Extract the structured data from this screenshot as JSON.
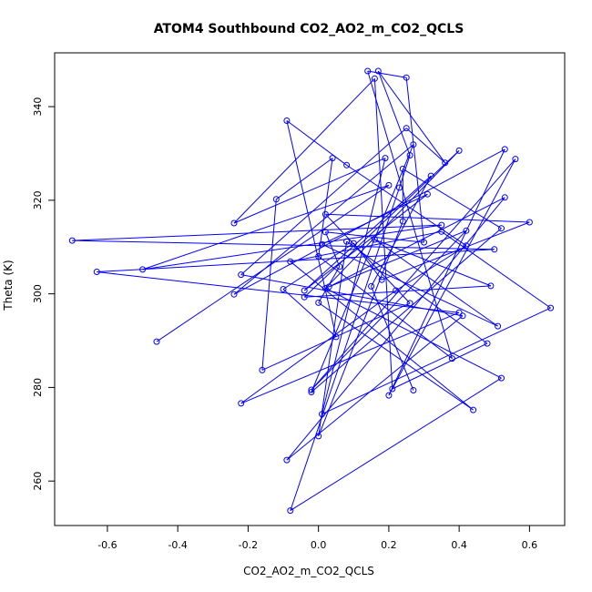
{
  "chart_data": {
    "type": "line",
    "title": "ATOM4 Southbound CO2_AO2_m_CO2_QCLS",
    "xlabel": "CO2_AO2_m_CO2_QCLS",
    "ylabel": "Theta (K)",
    "xlim": [
      -0.75,
      0.7
    ],
    "ylim": [
      250.5,
      351.5
    ],
    "xticks": [
      "-0.6",
      "-0.4",
      "-0.2",
      "0.0",
      "0.2",
      "0.4",
      "0.6"
    ],
    "yticks": [
      "260",
      "280",
      "300",
      "320",
      "340"
    ],
    "grid": false,
    "series_color": "#0000ff",
    "series": [
      {
        "marker": "open-circle",
        "points": [
          [
            -0.46,
            289.8
          ],
          [
            0.2,
            323.2
          ],
          [
            -0.5,
            305.2
          ],
          [
            0.35,
            314.7
          ],
          [
            -0.7,
            311.4
          ],
          [
            0.5,
            309.5
          ],
          [
            -0.63,
            304.7
          ],
          [
            0.4,
            296.0
          ],
          [
            -0.22,
            276.6
          ],
          [
            0.22,
            300.7
          ],
          [
            0.42,
            310.3
          ],
          [
            0.08,
            327.5
          ],
          [
            -0.09,
            337.0
          ],
          [
            0.05,
            290.8
          ],
          [
            -0.1,
            301.0
          ],
          [
            0.1,
            310.8
          ],
          [
            0.18,
            303.0
          ],
          [
            0.6,
            315.3
          ],
          [
            0.02,
            317.0
          ],
          [
            0.26,
            298.0
          ],
          [
            -0.16,
            283.7
          ],
          [
            -0.12,
            320.2
          ],
          [
            0.04,
            329.0
          ],
          [
            0.0,
            308.0
          ],
          [
            0.38,
            286.2
          ],
          [
            0.14,
            347.6
          ],
          [
            0.25,
            346.2
          ],
          [
            0.3,
            311.0
          ],
          [
            0.02,
            313.2
          ],
          [
            0.06,
            305.8
          ],
          [
            0.0,
            298.1
          ],
          [
            0.44,
            275.2
          ],
          [
            -0.08,
            306.9
          ],
          [
            0.35,
            313.3
          ],
          [
            0.66,
            297.0
          ],
          [
            0.01,
            274.3
          ],
          [
            0.19,
            329.0
          ],
          [
            -0.24,
            315.1
          ],
          [
            0.16,
            346.0
          ],
          [
            0.21,
            279.7
          ],
          [
            0.48,
            289.4
          ],
          [
            0.08,
            311.2
          ],
          [
            0.0,
            269.6
          ],
          [
            0.24,
            315.5
          ],
          [
            0.24,
            326.7
          ],
          [
            0.52,
            314.0
          ],
          [
            -0.02,
            279.0
          ],
          [
            0.27,
            331.9
          ],
          [
            -0.24,
            299.9
          ],
          [
            0.53,
            330.9
          ],
          [
            0.2,
            278.3
          ],
          [
            0.56,
            328.8
          ],
          [
            -0.02,
            279.5
          ],
          [
            0.42,
            313.5
          ],
          [
            0.03,
            301.5
          ],
          [
            0.53,
            320.6
          ],
          [
            -0.09,
            264.5
          ],
          [
            0.41,
            295.3
          ],
          [
            -0.22,
            304.1
          ],
          [
            0.25,
            335.4
          ],
          [
            0.36,
            328.0
          ],
          [
            0.17,
            347.6
          ],
          [
            0.26,
            329.6
          ],
          [
            0.23,
            322.7
          ],
          [
            -0.08,
            253.7
          ],
          [
            0.52,
            282.0
          ],
          [
            0.02,
            301.2
          ],
          [
            0.4,
            330.6
          ],
          [
            -0.04,
            299.3
          ],
          [
            0.49,
            301.7
          ],
          [
            0.16,
            311.6
          ],
          [
            0.51,
            293.1
          ],
          [
            0.01,
            310.6
          ],
          [
            0.31,
            321.3
          ],
          [
            -0.04,
            300.7
          ],
          [
            0.32,
            325.2
          ],
          [
            0.15,
            301.6
          ],
          [
            0.27,
            279.4
          ]
        ]
      }
    ]
  }
}
